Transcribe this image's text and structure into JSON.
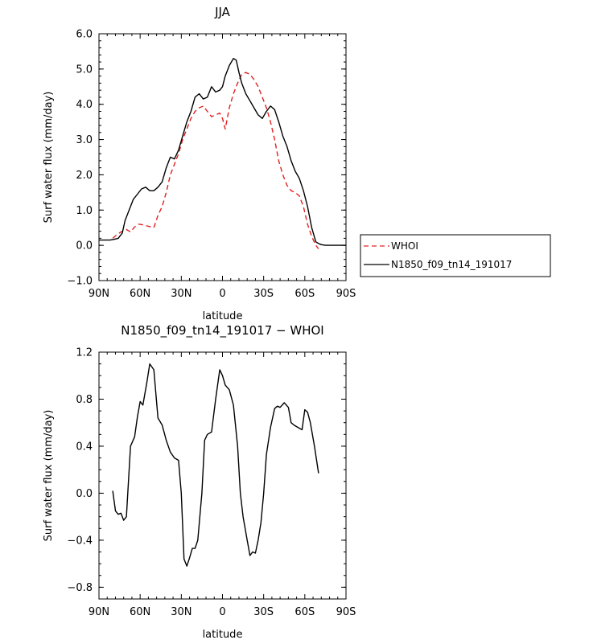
{
  "chart_data": [
    {
      "type": "line",
      "title": "JJA",
      "xlabel": "latitude",
      "ylabel": "Surf water flux (mm/day)",
      "xlim": [
        -90,
        90
      ],
      "ylim": [
        -1.0,
        6.0
      ],
      "x_ticks": [
        -90,
        -60,
        -30,
        0,
        30,
        60,
        90
      ],
      "x_tick_labels": [
        "90N",
        "60N",
        "30N",
        "0",
        "30S",
        "60S",
        "90S"
      ],
      "y_ticks": [
        -1.0,
        0.0,
        1.0,
        2.0,
        3.0,
        4.0,
        5.0,
        6.0
      ],
      "y_tick_labels": [
        "−1.0",
        "0.0",
        "1.0",
        "2.0",
        "3.0",
        "4.0",
        "5.0",
        "6.0"
      ],
      "legend_position": "right",
      "series": [
        {
          "name": "WHOI",
          "color": "#e02020",
          "dash": "dashed",
          "x": [
            -80,
            -77,
            -74,
            -72,
            -70,
            -67,
            -64,
            -61,
            -58,
            -55,
            -52,
            -50,
            -47,
            -44,
            -41,
            -38,
            -35,
            -32,
            -29,
            -26,
            -23,
            -20,
            -17,
            -14,
            -11,
            -8,
            -5,
            -2,
            0,
            2,
            5,
            8,
            11,
            14,
            17,
            20,
            23,
            26,
            29,
            32,
            35,
            38,
            41,
            44,
            47,
            50,
            53,
            56,
            59,
            62,
            65,
            68,
            70
          ],
          "y": [
            0.2,
            0.3,
            0.38,
            0.42,
            0.45,
            0.38,
            0.52,
            0.6,
            0.58,
            0.55,
            0.52,
            0.5,
            0.85,
            1.1,
            1.5,
            2.0,
            2.3,
            2.6,
            3.0,
            3.3,
            3.6,
            3.8,
            3.9,
            3.95,
            3.8,
            3.65,
            3.7,
            3.75,
            3.6,
            3.3,
            3.9,
            4.3,
            4.6,
            4.85,
            4.9,
            4.85,
            4.7,
            4.5,
            4.2,
            3.9,
            3.5,
            3.0,
            2.4,
            2.0,
            1.7,
            1.55,
            1.5,
            1.4,
            1.1,
            0.6,
            0.25,
            0.0,
            -0.1
          ]
        },
        {
          "name": "N1850_f09_tn14_191017",
          "color": "#000000",
          "dash": "solid",
          "x": [
            -90,
            -86,
            -82,
            -79,
            -76,
            -73,
            -71,
            -68,
            -65,
            -62,
            -59,
            -56,
            -53,
            -50,
            -47,
            -44,
            -41,
            -38,
            -35,
            -32,
            -29,
            -26,
            -23,
            -20,
            -17,
            -14,
            -11,
            -8,
            -5,
            -2,
            0,
            2,
            5,
            8,
            10,
            12,
            14,
            17,
            20,
            23,
            26,
            29,
            32,
            35,
            38,
            41,
            44,
            47,
            50,
            53,
            56,
            59,
            62,
            65,
            68,
            70,
            72,
            75,
            78,
            81,
            84,
            87,
            90
          ],
          "y": [
            0.15,
            0.15,
            0.15,
            0.17,
            0.2,
            0.35,
            0.7,
            1.0,
            1.3,
            1.45,
            1.6,
            1.65,
            1.55,
            1.55,
            1.65,
            1.8,
            2.2,
            2.5,
            2.45,
            2.7,
            3.1,
            3.5,
            3.8,
            4.2,
            4.3,
            4.15,
            4.2,
            4.5,
            4.35,
            4.4,
            4.5,
            4.8,
            5.1,
            5.3,
            5.25,
            4.9,
            4.6,
            4.3,
            4.1,
            3.9,
            3.7,
            3.6,
            3.8,
            3.95,
            3.85,
            3.5,
            3.1,
            2.8,
            2.4,
            2.1,
            1.9,
            1.55,
            1.1,
            0.5,
            0.1,
            0.05,
            0.02,
            0.0,
            0.0,
            0.0,
            0.0,
            0.0,
            0.0
          ]
        }
      ]
    },
    {
      "type": "line",
      "title": "N1850_f09_tn14_191017 − WHOI",
      "xlabel": "latitude",
      "ylabel": "Surf water flux (mm/day)",
      "xlim": [
        -90,
        90
      ],
      "ylim": [
        -0.9,
        1.2
      ],
      "x_ticks": [
        -90,
        -60,
        -30,
        0,
        30,
        60,
        90
      ],
      "x_tick_labels": [
        "90N",
        "60N",
        "30N",
        "0",
        "30S",
        "60S",
        "90S"
      ],
      "y_ticks": [
        -0.8,
        -0.4,
        0.0,
        0.4,
        0.8,
        1.2
      ],
      "y_tick_labels": [
        "−0.8",
        "−0.4",
        "0.0",
        "0.4",
        "0.8",
        "1.2"
      ],
      "series": [
        {
          "color": "#000000",
          "dash": "solid",
          "x": [
            -80,
            -78,
            -76,
            -74,
            -72,
            -70,
            -67,
            -64,
            -62,
            -60,
            -58,
            -55,
            -53,
            -50,
            -47,
            -44,
            -41,
            -38,
            -35,
            -32,
            -30,
            -28,
            -26,
            -24,
            -22,
            -20,
            -18,
            -15,
            -13,
            -11,
            -8,
            -5,
            -2,
            0,
            2,
            5,
            8,
            11,
            13,
            15,
            18,
            20,
            22,
            24,
            26,
            28,
            30,
            32,
            35,
            38,
            40,
            42,
            45,
            48,
            50,
            52,
            55,
            58,
            60,
            62,
            64,
            67,
            70
          ],
          "y": [
            0.02,
            -0.15,
            -0.18,
            -0.17,
            -0.23,
            -0.2,
            0.4,
            0.48,
            0.65,
            0.78,
            0.75,
            0.95,
            1.1,
            1.05,
            0.64,
            0.58,
            0.45,
            0.35,
            0.3,
            0.28,
            0.0,
            -0.56,
            -0.62,
            -0.55,
            -0.47,
            -0.47,
            -0.4,
            0.0,
            0.45,
            0.5,
            0.52,
            0.8,
            1.05,
            1.0,
            0.92,
            0.88,
            0.75,
            0.4,
            0.0,
            -0.2,
            -0.4,
            -0.53,
            -0.5,
            -0.51,
            -0.4,
            -0.25,
            0.0,
            0.33,
            0.56,
            0.72,
            0.74,
            0.73,
            0.77,
            0.73,
            0.6,
            0.58,
            0.56,
            0.54,
            0.71,
            0.69,
            0.6,
            0.4,
            0.17
          ]
        }
      ]
    }
  ]
}
